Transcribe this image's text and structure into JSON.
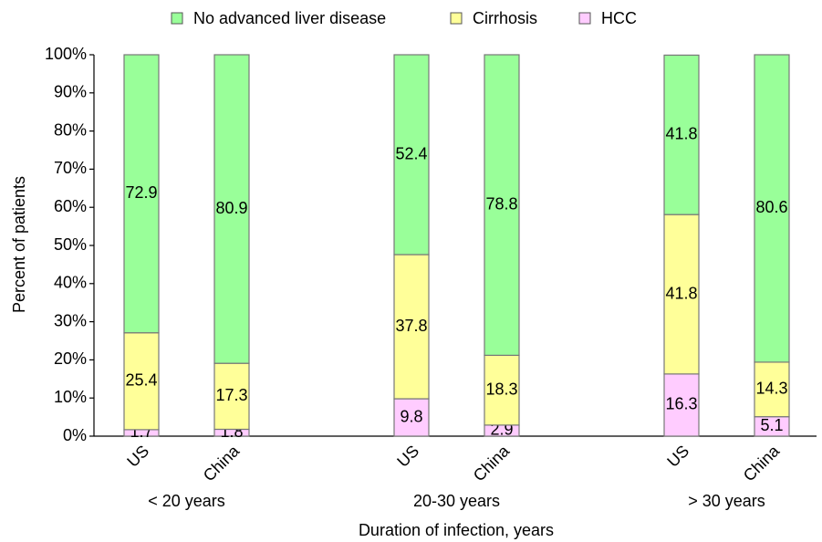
{
  "chart_data": {
    "type": "stacked-bar",
    "x_label": "Duration of infection, years",
    "y_label": "Percent of patients",
    "categories": [
      "US",
      "China",
      "US",
      "China",
      "US",
      "China"
    ],
    "groups": [
      "< 20 years",
      "20-30 years",
      "> 30 years"
    ],
    "series": [
      {
        "name": "No advanced liver disease",
        "color": "#99ff99",
        "values": [
          72.9,
          80.9,
          52.4,
          78.8,
          41.8,
          80.6
        ]
      },
      {
        "name": "Cirrhosis",
        "color": "#ffff99",
        "values": [
          25.4,
          17.3,
          37.8,
          18.3,
          41.8,
          14.3
        ]
      },
      {
        "name": "HCC",
        "color": "#ffccff",
        "values": [
          1.7,
          1.8,
          9.8,
          2.9,
          16.3,
          5.1
        ]
      }
    ],
    "ylim": [
      0,
      100
    ],
    "yticks": [
      {
        "value": 0,
        "label": "0%"
      },
      {
        "value": 10,
        "label": "10%"
      },
      {
        "value": 20,
        "label": "20%"
      },
      {
        "value": 30,
        "label": "30%"
      },
      {
        "value": 40,
        "label": "40%"
      },
      {
        "value": 50,
        "label": "50%"
      },
      {
        "value": 60,
        "label": "60%"
      },
      {
        "value": 70,
        "label": "70%"
      },
      {
        "value": 80,
        "label": "80%"
      },
      {
        "value": 90,
        "label": "90%"
      },
      {
        "value": 100,
        "label": "100%"
      }
    ],
    "grid": false,
    "legend": "top"
  }
}
